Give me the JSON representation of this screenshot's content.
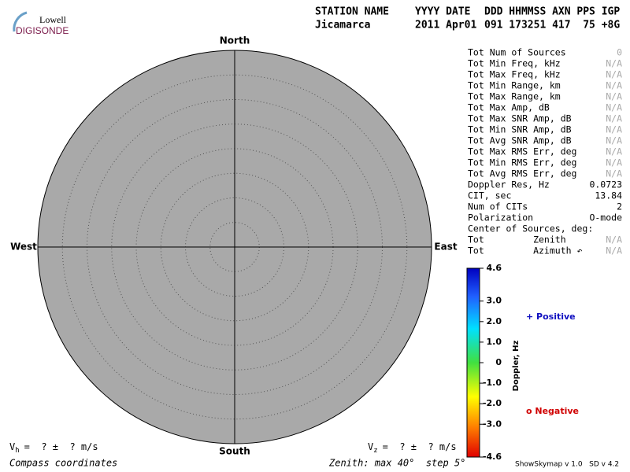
{
  "logo": {
    "brand": "Lowell",
    "product": "DIGISONDE"
  },
  "header": {
    "labels": [
      "STATION NAME",
      "YYYY DATE",
      "DDD HHMMSS AXN PPS IGP"
    ],
    "values": [
      "Jicamarca",
      "2011 Apr01",
      "091 173251 417  75 +8G"
    ]
  },
  "compass": {
    "north": "North",
    "south": "South",
    "east": "East",
    "west": "West"
  },
  "stats": [
    {
      "label": "Tot Num of Sources",
      "value": "0",
      "color": "#aaaaaa"
    },
    {
      "label": "Tot Min Freq, kHz",
      "value": "N/A",
      "color": "#aaaaaa"
    },
    {
      "label": "Tot Max Freq, kHz",
      "value": "N/A",
      "color": "#aaaaaa"
    },
    {
      "label": "Tot Min Range, km",
      "value": "N/A",
      "color": "#aaaaaa"
    },
    {
      "label": "Tot Max Range, km",
      "value": "N/A",
      "color": "#aaaaaa"
    },
    {
      "label": "Tot Max Amp, dB",
      "value": "N/A",
      "color": "#aaaaaa"
    },
    {
      "label": "Tot Max SNR Amp, dB",
      "value": "N/A",
      "color": "#aaaaaa"
    },
    {
      "label": "Tot Min SNR Amp, dB",
      "value": "N/A",
      "color": "#aaaaaa"
    },
    {
      "label": "Tot Avg SNR Amp, dB",
      "value": "N/A",
      "color": "#aaaaaa"
    },
    {
      "label": "Tot Max RMS Err, deg",
      "value": "N/A",
      "color": "#aaaaaa"
    },
    {
      "label": "Tot Min RMS Err, deg",
      "value": "N/A",
      "color": "#aaaaaa"
    },
    {
      "label": "Tot Avg RMS Err, deg",
      "value": "N/A",
      "color": "#aaaaaa"
    },
    {
      "label": "Doppler Res, Hz",
      "value": "0.0723",
      "color": "#000000"
    },
    {
      "label": "CIT, sec",
      "value": "13.84",
      "color": "#000000"
    },
    {
      "label": "Num of CITs",
      "value": "2",
      "color": "#000000"
    },
    {
      "label": "Polarization",
      "value": "O-mode",
      "color": "#000000"
    },
    {
      "label": "Center of Sources, deg:",
      "value": "",
      "color": "#000000"
    },
    {
      "label": "Tot         Zenith",
      "value": "N/A",
      "color": "#aaaaaa"
    },
    {
      "label": "Tot         Azimuth ↶",
      "value": "N/A",
      "color": "#aaaaaa"
    }
  ],
  "colorbar": {
    "title": "Doppler, Hz",
    "ticks": [
      {
        "value": 4.6,
        "label": "4.6"
      },
      {
        "value": 3,
        "label": "3.0"
      },
      {
        "value": 2,
        "label": "2.0"
      },
      {
        "value": 1,
        "label": "1.0"
      },
      0,
      {
        "value": -1,
        "label": "-1.0"
      },
      {
        "value": -2,
        "label": "-2.0"
      },
      {
        "value": -3,
        "label": "-3.0"
      },
      {
        "value": -4.6,
        "label": "-4.6"
      }
    ]
  },
  "legend": {
    "positive": "+ Positive",
    "negative": "o Negative"
  },
  "footer": {
    "vh": {
      "symbol": "V",
      "subscript": "h",
      "text": "=  ? ±  ? m/s"
    },
    "vz": {
      "symbol": "V",
      "subscript": "z",
      "text": "=  ? ±  ? m/s"
    },
    "coords": "Compass coordinates",
    "zenith": "Zenith: max 40°  step 5°",
    "version": "ShowSkymap v 1.0   SD v 4.2"
  }
}
